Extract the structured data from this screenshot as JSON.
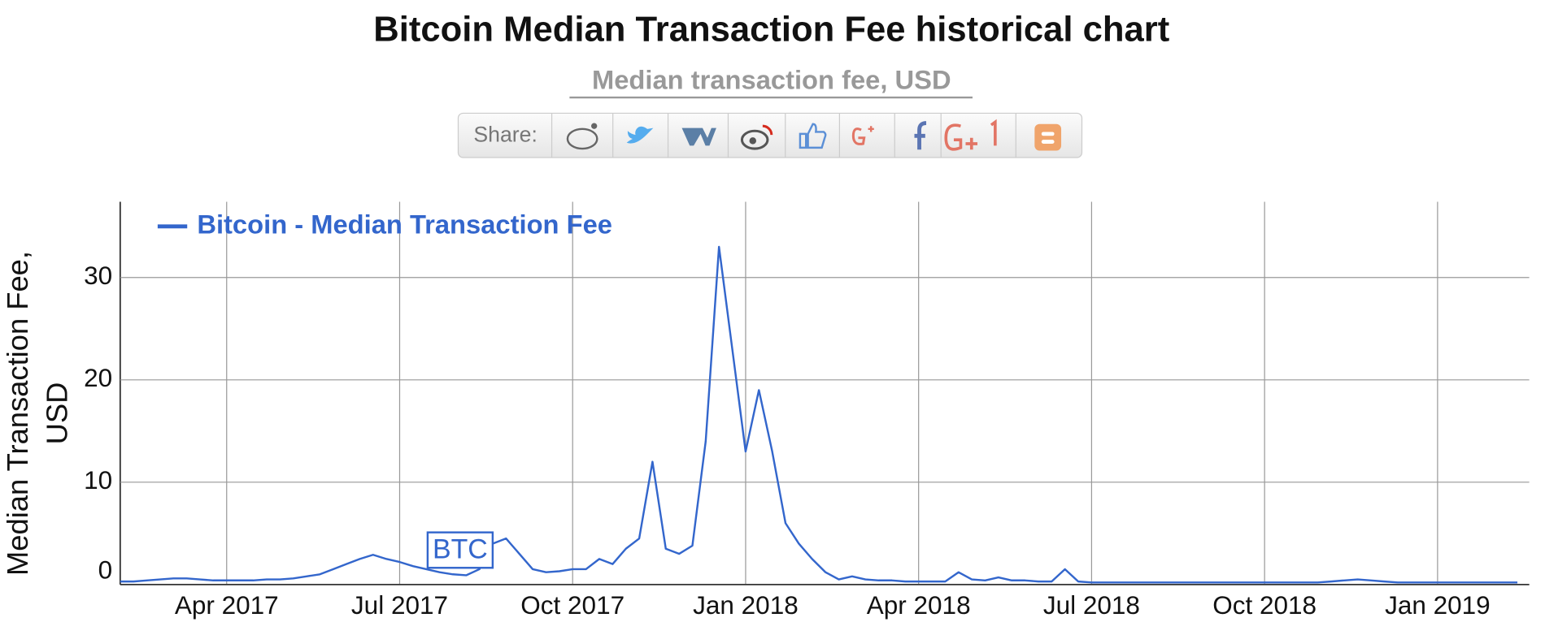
{
  "share": {
    "label": "Share:"
  },
  "chart_data": {
    "type": "line",
    "title": "Bitcoin Median Transaction Fee historical chart",
    "subtitle": "Median transaction fee, USD",
    "y_label": "Median Transaction Fee, USD",
    "annotation": "BTC",
    "categories": [
      null,
      null,
      null,
      null,
      null,
      null,
      null,
      null,
      "Apr 2017",
      null,
      null,
      null,
      null,
      null,
      null,
      null,
      null,
      null,
      null,
      null,
      null,
      "Jul 2017",
      null,
      null,
      null,
      null,
      null,
      null,
      null,
      null,
      null,
      null,
      null,
      null,
      "Oct 2017",
      null,
      null,
      null,
      null,
      null,
      null,
      null,
      null,
      null,
      null,
      null,
      null,
      "Jan 2018",
      null,
      null,
      null,
      null,
      null,
      null,
      null,
      null,
      null,
      null,
      null,
      null,
      "Apr 2018",
      null,
      null,
      null,
      null,
      null,
      null,
      null,
      null,
      null,
      null,
      null,
      null,
      "Jul 2018",
      null,
      null,
      null,
      null,
      null,
      null,
      null,
      null,
      null,
      null,
      null,
      null,
      "Oct 2018",
      null,
      null,
      null,
      null,
      null,
      null,
      null,
      null,
      null,
      null,
      null,
      null,
      "Jan 2019",
      null,
      null,
      null,
      null,
      null,
      null
    ],
    "series": [
      {
        "name": "Bitcoin - Median Transaction Fee",
        "color": "#3366cc",
        "values": [
          0.3,
          0.3,
          0.4,
          0.5,
          0.6,
          0.6,
          0.5,
          0.4,
          0.4,
          0.4,
          0.4,
          0.5,
          0.5,
          0.6,
          0.8,
          1.0,
          1.5,
          2.0,
          2.5,
          2.9,
          2.5,
          2.2,
          1.8,
          1.5,
          1.2,
          1.0,
          0.9,
          1.5,
          4.0,
          4.5,
          3.0,
          1.5,
          1.2,
          1.3,
          1.5,
          1.5,
          2.5,
          2.0,
          3.5,
          4.5,
          12.0,
          3.5,
          3.0,
          3.8,
          14.0,
          33.0,
          23.0,
          13.0,
          19.0,
          13.0,
          6.0,
          4.0,
          2.5,
          1.2,
          0.5,
          0.8,
          0.5,
          0.4,
          0.4,
          0.3,
          0.3,
          0.3,
          0.3,
          1.2,
          0.5,
          0.4,
          0.7,
          0.4,
          0.4,
          0.3,
          0.3,
          1.5,
          0.3,
          0.2,
          0.2,
          0.2,
          0.2,
          0.2,
          0.2,
          0.2,
          0.2,
          0.2,
          0.2,
          0.2,
          0.2,
          0.2,
          0.2,
          0.2,
          0.2,
          0.2,
          0.2,
          0.3,
          0.4,
          0.5,
          0.4,
          0.3,
          0.2,
          0.2,
          0.2,
          0.2,
          0.2,
          0.2,
          0.2,
          0.2,
          0.2,
          0.2
        ]
      }
    ],
    "ylim": [
      0,
      37.4
    ],
    "yticks": [
      0,
      10,
      20,
      30
    ],
    "grid": true,
    "legend": "top-left"
  }
}
